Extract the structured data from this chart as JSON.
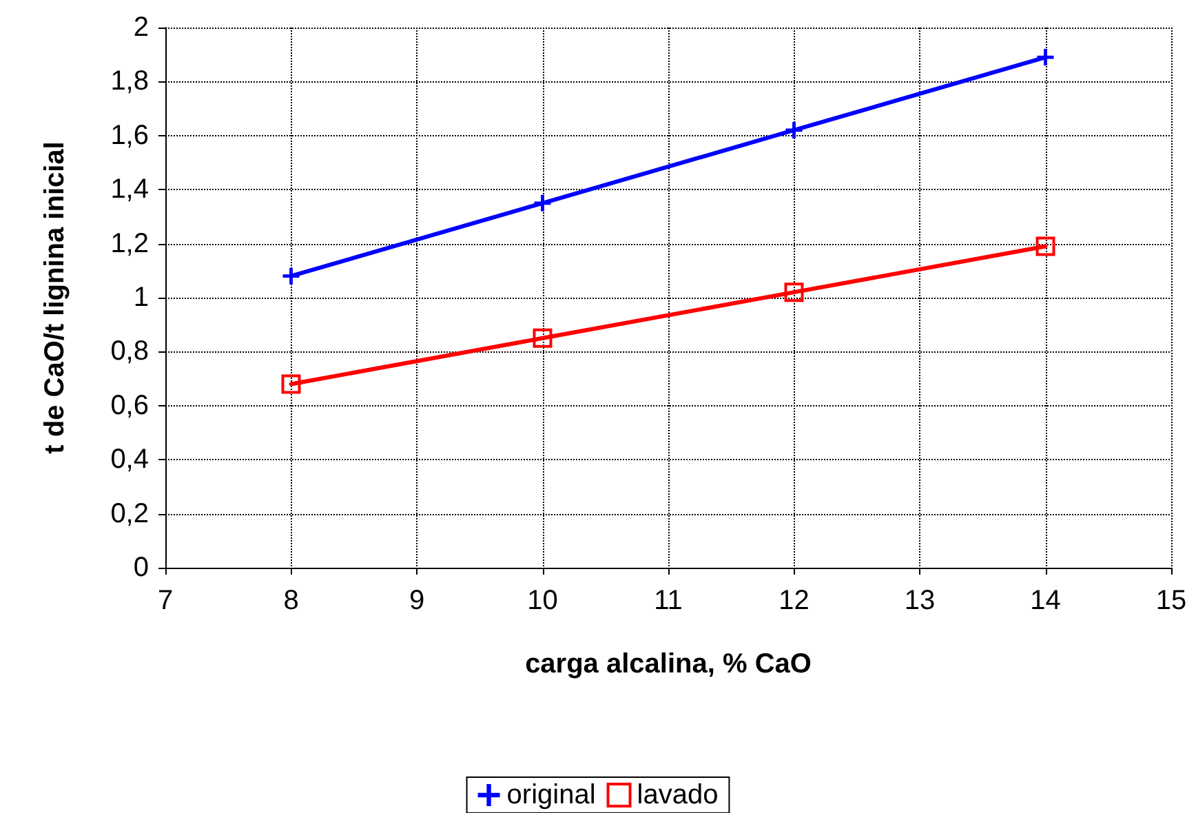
{
  "chart_data": {
    "type": "line",
    "xlabel": "carga alcalina, % CaO",
    "ylabel": "t de CaO/t lignina inicial",
    "x": [
      8,
      10,
      12,
      14
    ],
    "series": [
      {
        "name": "original",
        "color": "#0000ff",
        "marker": "cross",
        "values": [
          1.08,
          1.35,
          1.62,
          1.89
        ]
      },
      {
        "name": "lavado",
        "color": "#ff0000",
        "marker": "square",
        "values": [
          0.68,
          0.85,
          1.02,
          1.19
        ]
      }
    ],
    "xlim": [
      7,
      15
    ],
    "xticks": [
      7,
      8,
      9,
      10,
      11,
      12,
      13,
      14,
      15
    ],
    "ylim": [
      0,
      2
    ],
    "yticks": [
      0,
      {
        "value": 0.2,
        "label": "0,2"
      },
      {
        "value": 0.4,
        "label": "0,4"
      },
      {
        "value": 0.6,
        "label": "0,6"
      },
      {
        "value": 0.8,
        "label": "0,8"
      },
      1,
      {
        "value": 1.2,
        "label": "1,2"
      },
      {
        "value": 1.4,
        "label": "1,4"
      },
      {
        "value": 1.6,
        "label": "1,6"
      },
      {
        "value": 1.8,
        "label": "1,8"
      },
      2
    ],
    "grid": true,
    "legend": "bottom",
    "line_style": "solid"
  }
}
